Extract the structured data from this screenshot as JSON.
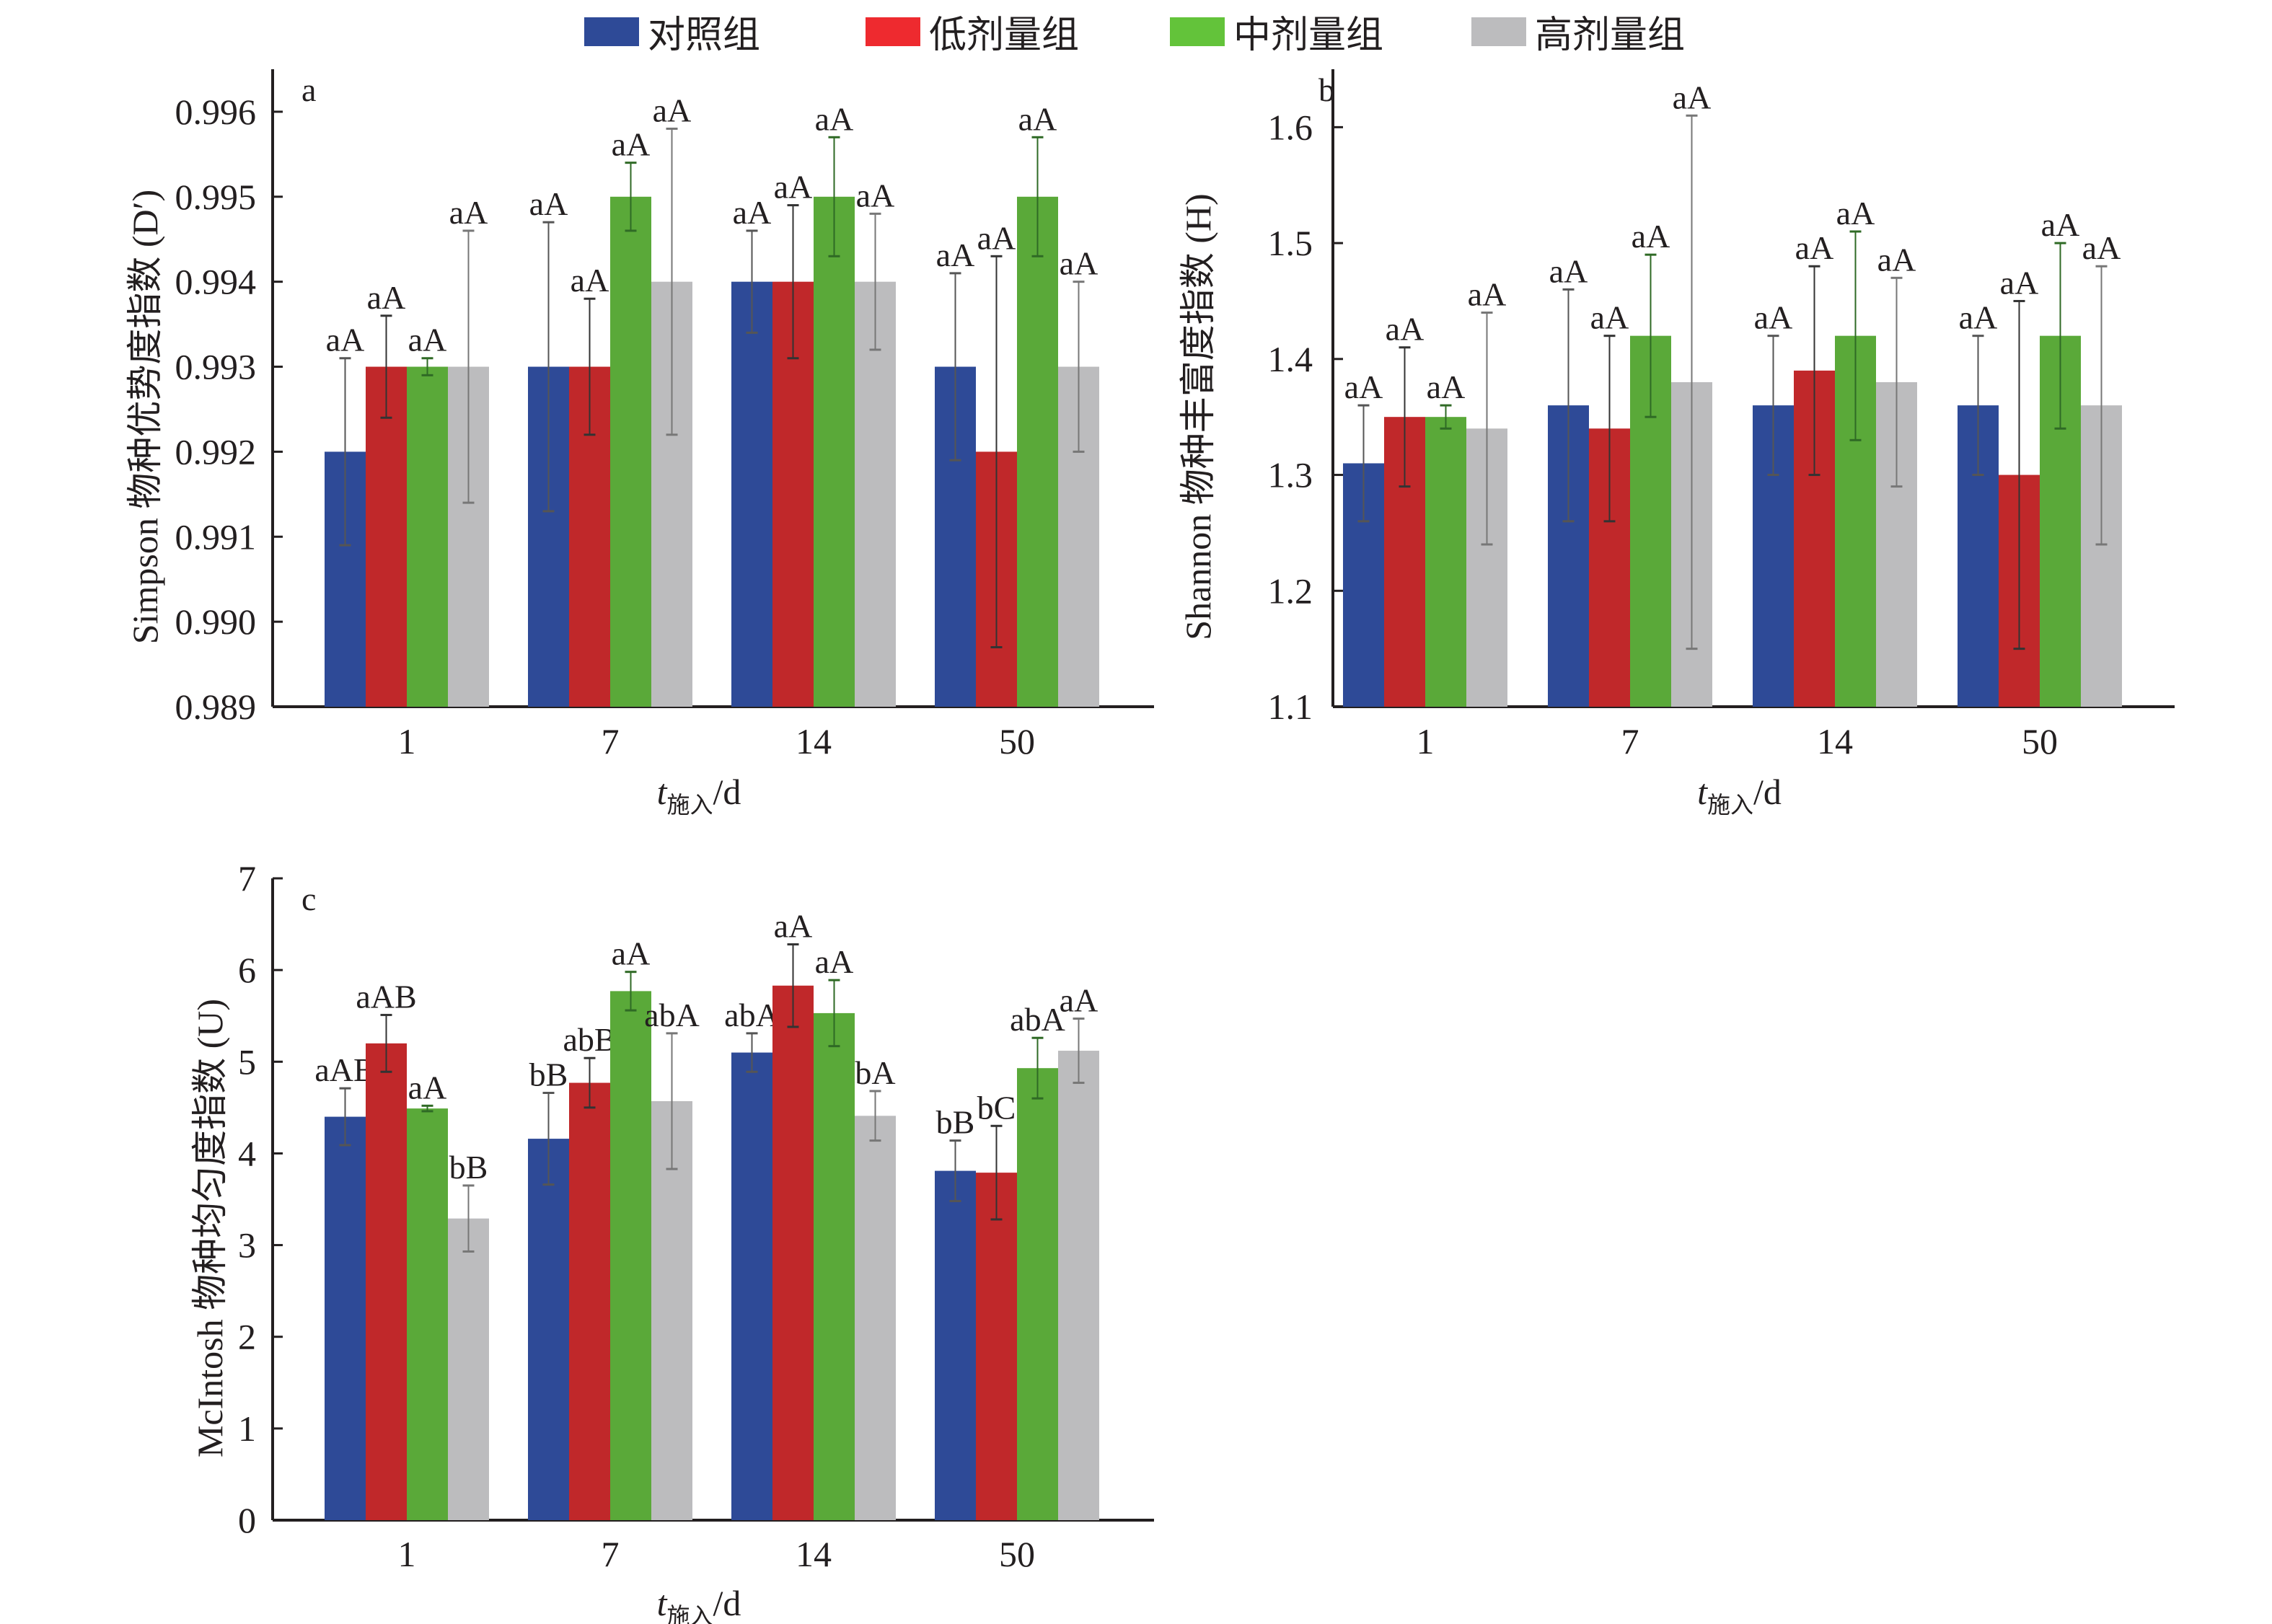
{
  "legend": [
    {
      "label": "对照组",
      "color": "#2e4a97"
    },
    {
      "label": "低剂量组",
      "color": "#c0282a"
    },
    {
      "label": "中剂量组",
      "color": "#5aa939"
    },
    {
      "label": "高剂量组",
      "color": "#bcbcbe"
    }
  ],
  "chart_data": [
    {
      "panel": "a",
      "type": "bar",
      "title": "",
      "ylabel": "Simpson 物种优势度指数 (D′)",
      "xlabel": "t施入/d",
      "xlabel_main": "t",
      "xlabel_sub": "施入",
      "xlabel_unit": "/d",
      "categories": [
        "1",
        "7",
        "14",
        "50"
      ],
      "ylim": [
        0.989,
        0.9965
      ],
      "yticks": [
        0.989,
        0.99,
        0.991,
        0.992,
        0.993,
        0.994,
        0.995,
        0.996
      ],
      "ytick_labels": [
        "0.989",
        "0.990",
        "0.991",
        "0.992",
        "0.993",
        "0.994",
        "0.995",
        "0.996"
      ],
      "grid": false,
      "legend_position": "top",
      "series": [
        {
          "name": "对照组",
          "values": [
            0.992,
            0.993,
            0.994,
            0.993
          ],
          "errors": [
            0.0011,
            0.0017,
            0.0006,
            0.0011
          ],
          "labels": [
            "aA",
            "aA",
            "aA",
            "aA"
          ]
        },
        {
          "name": "低剂量组",
          "values": [
            0.993,
            0.993,
            0.994,
            0.992
          ],
          "errors": [
            0.0006,
            0.0008,
            0.0009,
            0.0023
          ],
          "labels": [
            "aA",
            "aA",
            "aA",
            "aA"
          ]
        },
        {
          "name": "中剂量组",
          "values": [
            0.993,
            0.995,
            0.995,
            0.995
          ],
          "errors": [
            0.0001,
            0.0004,
            0.0007,
            0.0007
          ],
          "labels": [
            "aA",
            "aA",
            "aA",
            "aA"
          ]
        },
        {
          "name": "高剂量组",
          "values": [
            0.993,
            0.994,
            0.994,
            0.993
          ],
          "errors": [
            0.0016,
            0.0018,
            0.0008,
            0.001
          ],
          "labels": [
            "aA",
            "aA",
            "aA",
            "aA"
          ]
        }
      ]
    },
    {
      "panel": "b",
      "type": "bar",
      "title": "",
      "ylabel": "Shannon 物种丰富度指数 (H)",
      "xlabel": "t施入/d",
      "xlabel_main": "t",
      "xlabel_sub": "施入",
      "xlabel_unit": "/d",
      "categories": [
        "1",
        "7",
        "14",
        "50"
      ],
      "ylim": [
        1.1,
        1.65
      ],
      "yticks": [
        1.1,
        1.2,
        1.3,
        1.4,
        1.5,
        1.6
      ],
      "ytick_labels": [
        "1.1",
        "1.2",
        "1.3",
        "1.4",
        "1.5",
        "1.6"
      ],
      "grid": false,
      "legend_position": "top",
      "series": [
        {
          "name": "对照组",
          "values": [
            1.31,
            1.36,
            1.36,
            1.36
          ],
          "errors": [
            0.05,
            0.1,
            0.06,
            0.06
          ],
          "labels": [
            "aA",
            "aA",
            "aA",
            "aA"
          ]
        },
        {
          "name": "低剂量组",
          "values": [
            1.35,
            1.34,
            1.39,
            1.3
          ],
          "errors": [
            0.06,
            0.08,
            0.09,
            0.15
          ],
          "labels": [
            "aA",
            "aA",
            "aA",
            "aA"
          ]
        },
        {
          "name": "中剂量组",
          "values": [
            1.35,
            1.42,
            1.42,
            1.42
          ],
          "errors": [
            0.01,
            0.07,
            0.09,
            0.08
          ],
          "labels": [
            "aA",
            "aA",
            "aA",
            "aA"
          ]
        },
        {
          "name": "高剂量组",
          "values": [
            1.34,
            1.38,
            1.38,
            1.36
          ],
          "errors": [
            0.1,
            0.23,
            0.09,
            0.12
          ],
          "labels": [
            "aA",
            "aA",
            "aA",
            "aA"
          ]
        }
      ]
    },
    {
      "panel": "c",
      "type": "bar",
      "title": "",
      "ylabel": "McIntosh 物种均匀度指数 (U)",
      "xlabel": "t施入/d",
      "xlabel_main": "t",
      "xlabel_sub": "施入",
      "xlabel_unit": "/d",
      "categories": [
        "1",
        "7",
        "14",
        "50"
      ],
      "ylim": [
        0,
        7
      ],
      "yticks": [
        0,
        1,
        2,
        3,
        4,
        5,
        6,
        7
      ],
      "ytick_labels": [
        "0",
        "1",
        "2",
        "3",
        "4",
        "5",
        "6",
        "7"
      ],
      "grid": false,
      "legend_position": "top",
      "series": [
        {
          "name": "对照组",
          "values": [
            4.4,
            4.16,
            5.1,
            3.81
          ],
          "errors": [
            0.31,
            0.5,
            0.21,
            0.33
          ],
          "labels": [
            "aAB",
            "bB",
            "abA",
            "bB"
          ]
        },
        {
          "name": "低剂量组",
          "values": [
            5.2,
            4.77,
            5.83,
            3.79
          ],
          "errors": [
            0.31,
            0.27,
            0.45,
            0.51
          ],
          "labels": [
            "aAB",
            "abB",
            "aA",
            "bC"
          ]
        },
        {
          "name": "中剂量组",
          "values": [
            4.49,
            5.77,
            5.53,
            4.93
          ],
          "errors": [
            0.03,
            0.21,
            0.36,
            0.33
          ],
          "labels": [
            "aA",
            "aA",
            "aA",
            "abA"
          ]
        },
        {
          "name": "高剂量组",
          "values": [
            3.29,
            4.57,
            4.41,
            5.12
          ],
          "errors": [
            0.36,
            0.74,
            0.27,
            0.35
          ],
          "labels": [
            "bB",
            "abA",
            "bA",
            "aA"
          ]
        }
      ]
    }
  ]
}
